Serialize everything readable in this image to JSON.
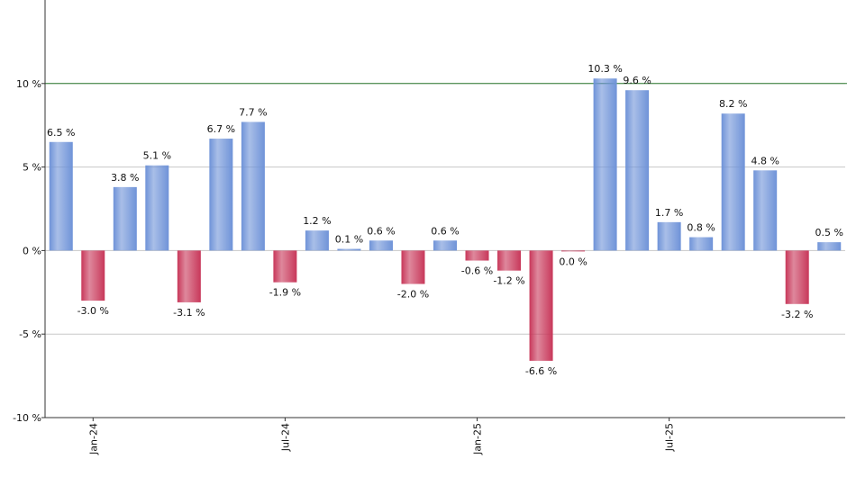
{
  "chart_data": {
    "type": "bar",
    "categories": [
      null,
      "Jan-24",
      null,
      null,
      null,
      null,
      null,
      "Jul-24",
      null,
      null,
      null,
      null,
      null,
      "Jan-25",
      null,
      null,
      null,
      null,
      null,
      "Jul-25",
      null,
      null,
      null,
      null,
      null
    ],
    "values": [
      6.5,
      -3.0,
      3.8,
      5.1,
      -3.1,
      6.7,
      7.7,
      -1.9,
      1.2,
      0.1,
      0.6,
      -2.0,
      0.6,
      -0.6,
      -1.2,
      -6.6,
      -0.04,
      10.3,
      9.6,
      1.7,
      0.8,
      8.2,
      4.8,
      -3.2,
      0.5
    ],
    "value_labels": [
      "6.5 %",
      "-3.0 %",
      "3.8 %",
      "5.1 %",
      "-3.1 %",
      "6.7 %",
      "7.7 %",
      "-1.9 %",
      "1.2 %",
      "0.1 %",
      "0.6 %",
      "-2.0 %",
      "0.6 %",
      "-0.6 %",
      "-1.2 %",
      "-6.6 %",
      "0.0 %",
      "10.3 %",
      "9.6 %",
      "1.7 %",
      "0.8 %",
      "8.2 %",
      "4.8 %",
      "-3.2 %",
      "0.5 %"
    ],
    "positive_color": "#6f93d8",
    "negative_color": "#c8385a",
    "ylim": [
      -10,
      15
    ],
    "yticks": [
      {
        "value": -10,
        "label": "-10 %"
      },
      {
        "value": -5,
        "label": "-5 %"
      },
      {
        "value": 0,
        "label": "0 %"
      },
      {
        "value": 5,
        "label": "5 %"
      },
      {
        "value": 10,
        "label": "10 %"
      }
    ],
    "grid": true,
    "reference_line": 10,
    "reference_color": "#2e7d32"
  }
}
